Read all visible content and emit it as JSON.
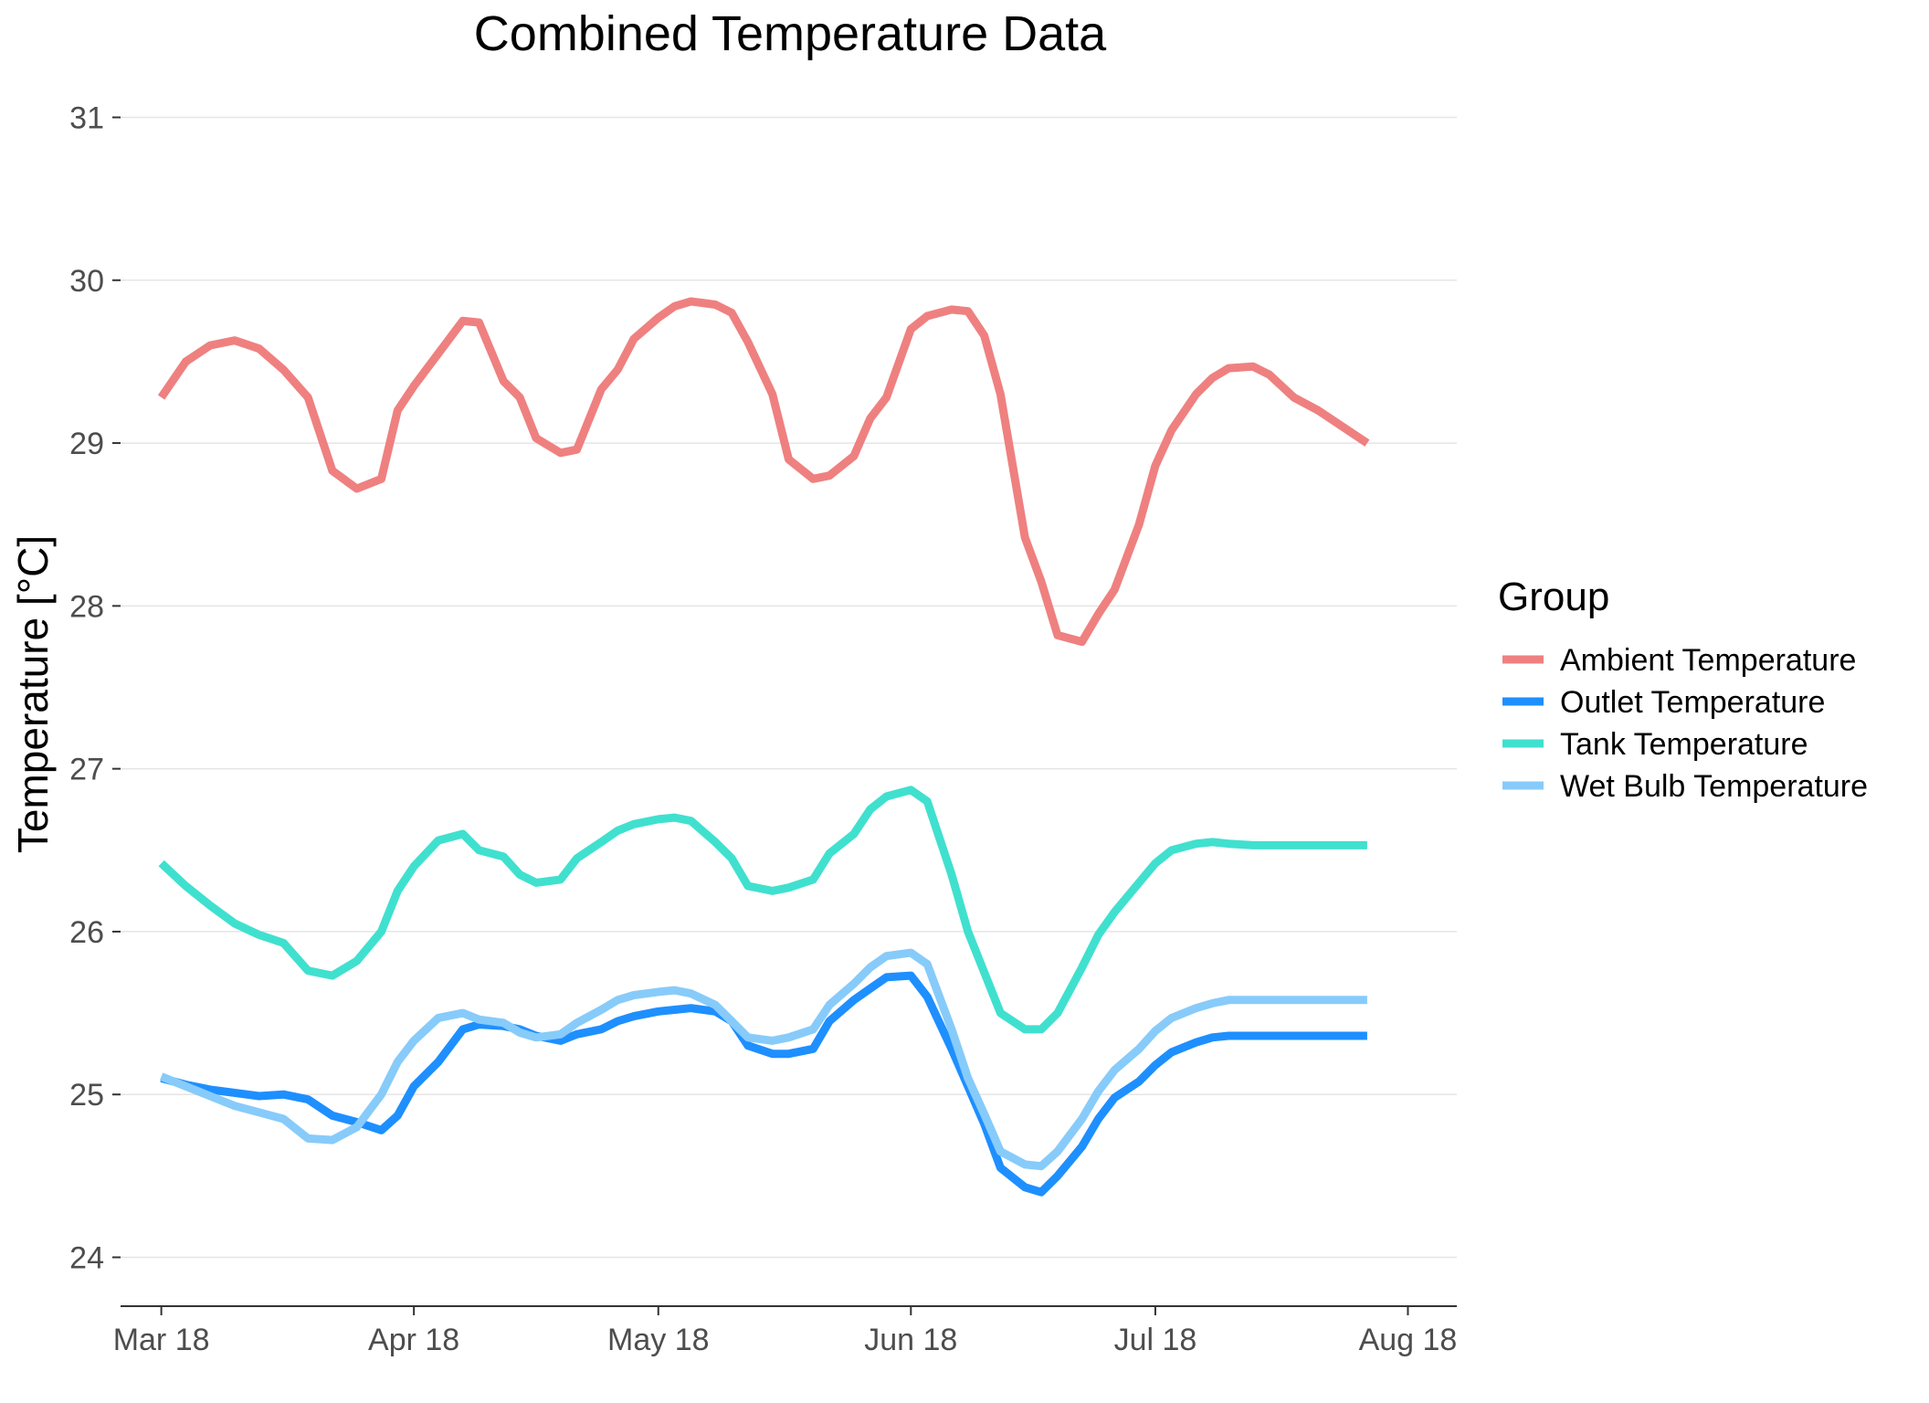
{
  "chart_data": {
    "type": "line",
    "title": "Combined Temperature Data",
    "xlabel": "",
    "ylabel": "Temperature [°C]",
    "ylim": [
      23.7,
      31.3
    ],
    "xlim": [
      "2018-02-24",
      "2018-08-07"
    ],
    "grid": "horizontal major",
    "legend_title": "Group",
    "legend_position": "right",
    "y_ticks": [
      24,
      25,
      26,
      27,
      28,
      29,
      30,
      31
    ],
    "x_ticks": [
      {
        "date": "2018-03-01",
        "label": "Mar 18"
      },
      {
        "date": "2018-04-01",
        "label": "Apr 18"
      },
      {
        "date": "2018-05-01",
        "label": "May 18"
      },
      {
        "date": "2018-06-01",
        "label": "Jun 18"
      },
      {
        "date": "2018-07-01",
        "label": "Jul 18"
      },
      {
        "date": "2018-08-01",
        "label": "Aug 18"
      }
    ],
    "series": [
      {
        "name": "Ambient Temperature",
        "color": "#ef8080",
        "x": [
          "2018-03-01",
          "2018-03-04",
          "2018-03-07",
          "2018-03-10",
          "2018-03-13",
          "2018-03-16",
          "2018-03-19",
          "2018-03-22",
          "2018-03-25",
          "2018-03-28",
          "2018-03-30",
          "2018-04-01",
          "2018-04-04",
          "2018-04-07",
          "2018-04-09",
          "2018-04-12",
          "2018-04-14",
          "2018-04-16",
          "2018-04-19",
          "2018-04-21",
          "2018-04-24",
          "2018-04-26",
          "2018-04-28",
          "2018-05-01",
          "2018-05-03",
          "2018-05-05",
          "2018-05-08",
          "2018-05-10",
          "2018-05-12",
          "2018-05-15",
          "2018-05-17",
          "2018-05-20",
          "2018-05-22",
          "2018-05-25",
          "2018-05-27",
          "2018-05-29",
          "2018-06-01",
          "2018-06-03",
          "2018-06-06",
          "2018-06-08",
          "2018-06-10",
          "2018-06-12",
          "2018-06-15",
          "2018-06-17",
          "2018-06-19",
          "2018-06-22",
          "2018-06-24",
          "2018-06-26",
          "2018-06-29",
          "2018-07-01",
          "2018-07-03",
          "2018-07-06",
          "2018-07-08",
          "2018-07-10",
          "2018-07-13",
          "2018-07-15",
          "2018-07-18",
          "2018-07-21",
          "2018-07-24",
          "2018-07-27"
        ],
        "y": [
          29.28,
          29.5,
          29.6,
          29.63,
          29.58,
          29.45,
          29.28,
          28.83,
          28.72,
          28.78,
          29.2,
          29.35,
          29.55,
          29.75,
          29.74,
          29.38,
          29.28,
          29.03,
          28.94,
          28.96,
          29.33,
          29.45,
          29.64,
          29.77,
          29.84,
          29.87,
          29.85,
          29.8,
          29.62,
          29.3,
          28.9,
          28.78,
          28.8,
          28.92,
          29.15,
          29.28,
          29.7,
          29.78,
          29.82,
          29.81,
          29.66,
          29.3,
          28.42,
          28.15,
          27.82,
          27.78,
          27.95,
          28.1,
          28.5,
          28.86,
          29.08,
          29.3,
          29.4,
          29.46,
          29.47,
          29.42,
          29.28,
          29.2,
          29.1,
          29.0
        ]
      },
      {
        "name": "Outlet Temperature",
        "color": "#1e8fff",
        "x": [
          "2018-03-01",
          "2018-03-04",
          "2018-03-07",
          "2018-03-10",
          "2018-03-13",
          "2018-03-16",
          "2018-03-19",
          "2018-03-22",
          "2018-03-25",
          "2018-03-28",
          "2018-03-30",
          "2018-04-01",
          "2018-04-04",
          "2018-04-07",
          "2018-04-09",
          "2018-04-12",
          "2018-04-14",
          "2018-04-16",
          "2018-04-19",
          "2018-04-21",
          "2018-04-24",
          "2018-04-26",
          "2018-04-28",
          "2018-05-01",
          "2018-05-03",
          "2018-05-05",
          "2018-05-08",
          "2018-05-10",
          "2018-05-12",
          "2018-05-15",
          "2018-05-17",
          "2018-05-20",
          "2018-05-22",
          "2018-05-25",
          "2018-05-27",
          "2018-05-29",
          "2018-06-01",
          "2018-06-03",
          "2018-06-06",
          "2018-06-08",
          "2018-06-10",
          "2018-06-12",
          "2018-06-15",
          "2018-06-17",
          "2018-06-19",
          "2018-06-22",
          "2018-06-24",
          "2018-06-26",
          "2018-06-29",
          "2018-07-01",
          "2018-07-03",
          "2018-07-06",
          "2018-07-08",
          "2018-07-10",
          "2018-07-13",
          "2018-07-15",
          "2018-07-18",
          "2018-07-21",
          "2018-07-24",
          "2018-07-27"
        ],
        "y": [
          25.1,
          25.06,
          25.03,
          25.01,
          24.99,
          25.0,
          24.97,
          24.87,
          24.83,
          24.78,
          24.87,
          25.05,
          25.2,
          25.4,
          25.43,
          25.42,
          25.4,
          25.36,
          25.33,
          25.37,
          25.4,
          25.45,
          25.48,
          25.51,
          25.52,
          25.53,
          25.51,
          25.45,
          25.3,
          25.25,
          25.25,
          25.28,
          25.45,
          25.58,
          25.65,
          25.72,
          25.73,
          25.6,
          25.28,
          25.05,
          24.82,
          24.55,
          24.43,
          24.4,
          24.5,
          24.68,
          24.85,
          24.98,
          25.08,
          25.18,
          25.26,
          25.32,
          25.35,
          25.36,
          25.36,
          25.36,
          25.36,
          25.36,
          25.36,
          25.36
        ]
      },
      {
        "name": "Tank Temperature",
        "color": "#40e0cf",
        "x": [
          "2018-03-01",
          "2018-03-04",
          "2018-03-07",
          "2018-03-10",
          "2018-03-13",
          "2018-03-16",
          "2018-03-19",
          "2018-03-22",
          "2018-03-25",
          "2018-03-28",
          "2018-03-30",
          "2018-04-01",
          "2018-04-04",
          "2018-04-07",
          "2018-04-09",
          "2018-04-12",
          "2018-04-14",
          "2018-04-16",
          "2018-04-19",
          "2018-04-21",
          "2018-04-24",
          "2018-04-26",
          "2018-04-28",
          "2018-05-01",
          "2018-05-03",
          "2018-05-05",
          "2018-05-08",
          "2018-05-10",
          "2018-05-12",
          "2018-05-15",
          "2018-05-17",
          "2018-05-20",
          "2018-05-22",
          "2018-05-25",
          "2018-05-27",
          "2018-05-29",
          "2018-06-01",
          "2018-06-03",
          "2018-06-06",
          "2018-06-08",
          "2018-06-10",
          "2018-06-12",
          "2018-06-15",
          "2018-06-17",
          "2018-06-19",
          "2018-06-22",
          "2018-06-24",
          "2018-06-26",
          "2018-06-29",
          "2018-07-01",
          "2018-07-03",
          "2018-07-06",
          "2018-07-08",
          "2018-07-10",
          "2018-07-13",
          "2018-07-15",
          "2018-07-18",
          "2018-07-21",
          "2018-07-24",
          "2018-07-27"
        ],
        "y": [
          26.42,
          26.28,
          26.16,
          26.05,
          25.98,
          25.93,
          25.76,
          25.73,
          25.82,
          26.0,
          26.25,
          26.4,
          26.56,
          26.6,
          26.5,
          26.46,
          26.35,
          26.3,
          26.32,
          26.45,
          26.55,
          26.62,
          26.66,
          26.69,
          26.7,
          26.68,
          26.55,
          26.45,
          26.28,
          26.25,
          26.27,
          26.32,
          26.48,
          26.6,
          26.75,
          26.83,
          26.87,
          26.8,
          26.35,
          26.0,
          25.75,
          25.5,
          25.4,
          25.4,
          25.5,
          25.78,
          25.98,
          26.12,
          26.3,
          26.42,
          26.5,
          26.54,
          26.55,
          26.54,
          26.53,
          26.53,
          26.53,
          26.53,
          26.53,
          26.53
        ]
      },
      {
        "name": "Wet Bulb Temperature",
        "color": "#87cbfa",
        "x": [
          "2018-03-01",
          "2018-03-04",
          "2018-03-07",
          "2018-03-10",
          "2018-03-13",
          "2018-03-16",
          "2018-03-19",
          "2018-03-22",
          "2018-03-25",
          "2018-03-28",
          "2018-03-30",
          "2018-04-01",
          "2018-04-04",
          "2018-04-07",
          "2018-04-09",
          "2018-04-12",
          "2018-04-14",
          "2018-04-16",
          "2018-04-19",
          "2018-04-21",
          "2018-04-24",
          "2018-04-26",
          "2018-04-28",
          "2018-05-01",
          "2018-05-03",
          "2018-05-05",
          "2018-05-08",
          "2018-05-10",
          "2018-05-12",
          "2018-05-15",
          "2018-05-17",
          "2018-05-20",
          "2018-05-22",
          "2018-05-25",
          "2018-05-27",
          "2018-05-29",
          "2018-06-01",
          "2018-06-03",
          "2018-06-06",
          "2018-06-08",
          "2018-06-10",
          "2018-06-12",
          "2018-06-15",
          "2018-06-17",
          "2018-06-19",
          "2018-06-22",
          "2018-06-24",
          "2018-06-26",
          "2018-06-29",
          "2018-07-01",
          "2018-07-03",
          "2018-07-06",
          "2018-07-08",
          "2018-07-10",
          "2018-07-13",
          "2018-07-15",
          "2018-07-18",
          "2018-07-21",
          "2018-07-24",
          "2018-07-27"
        ],
        "y": [
          25.11,
          25.05,
          24.99,
          24.93,
          24.89,
          24.85,
          24.73,
          24.72,
          24.8,
          25.0,
          25.2,
          25.33,
          25.47,
          25.5,
          25.46,
          25.44,
          25.38,
          25.35,
          25.37,
          25.44,
          25.52,
          25.58,
          25.61,
          25.63,
          25.64,
          25.62,
          25.55,
          25.45,
          25.35,
          25.33,
          25.35,
          25.4,
          25.55,
          25.68,
          25.78,
          25.85,
          25.87,
          25.8,
          25.4,
          25.1,
          24.88,
          24.65,
          24.57,
          24.56,
          24.65,
          24.85,
          25.02,
          25.15,
          25.28,
          25.39,
          25.47,
          25.53,
          25.56,
          25.58,
          25.58,
          25.58,
          25.58,
          25.58,
          25.58,
          25.58
        ]
      }
    ]
  }
}
